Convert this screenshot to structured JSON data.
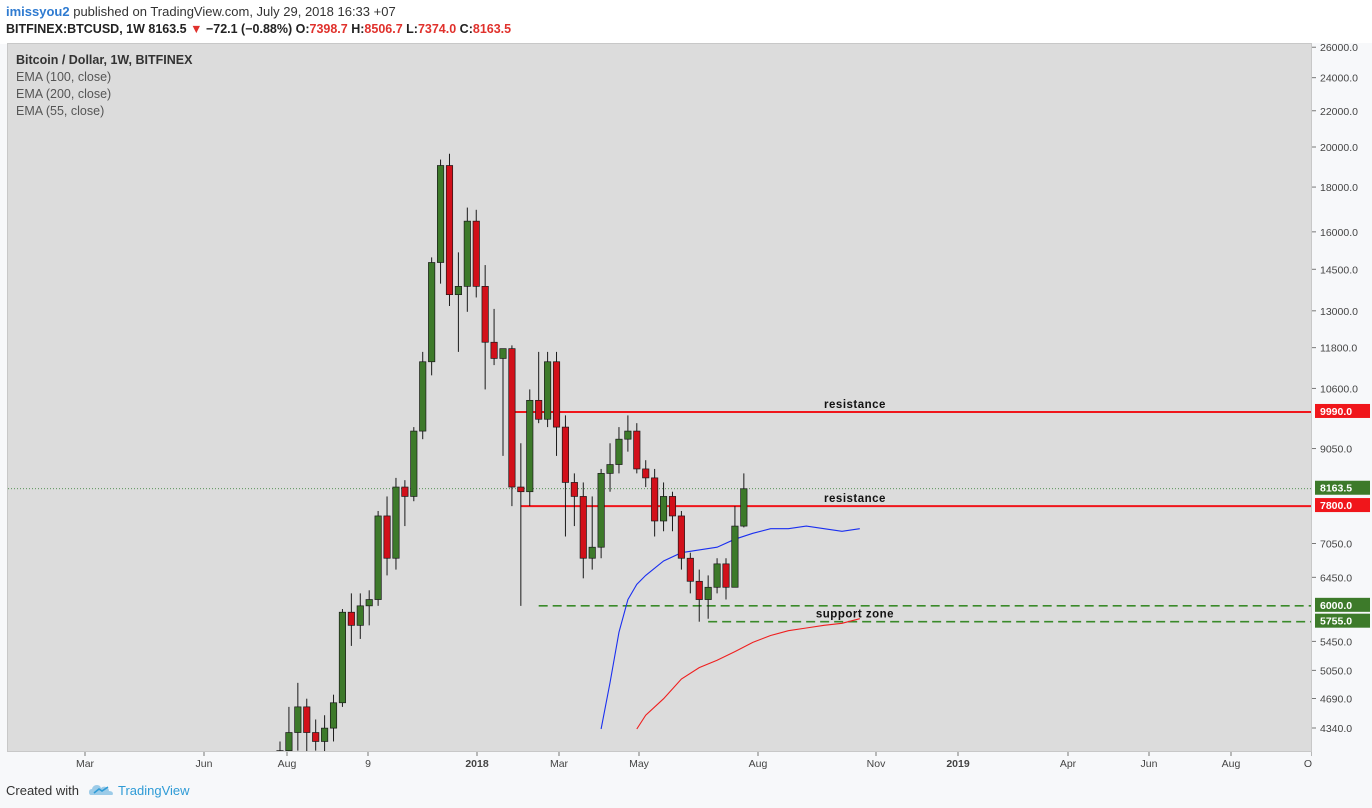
{
  "header": {
    "user": "imissyou2",
    "published": "published on TradingView.com, July 29, 2018 16:33 +07",
    "symbol": "BITFINEX:BTCUSD, 1W",
    "last": "8163.5",
    "change": "−72.1 (−0.88%)",
    "o_label": "O:",
    "o_value": "7398.7",
    "h_label": "H:",
    "h_value": "8506.7",
    "l_label": "L:",
    "l_value": "7374.0",
    "c_label": "C:",
    "c_value": "8163.5"
  },
  "legend": {
    "title": "Bitcoin / Dollar, 1W, BITFINEX",
    "ema1": "EMA (100, close)",
    "ema2": "EMA (200, close)",
    "ema3": "EMA (55, close)"
  },
  "footer": {
    "created": "Created with",
    "brand": "TradingView"
  },
  "colors": {
    "up": "#3d7a2a",
    "down": "#d2101a",
    "ema_blue": "#1a2ff0",
    "ema_red": "#ef1f1f",
    "resistance": "#f0161b",
    "support": "#3a8a2a"
  },
  "chart_data": {
    "type": "candlestick",
    "y_axis_ticks": [
      4340,
      4690,
      5050,
      5450,
      6450,
      7050,
      9050,
      10600,
      11800,
      13000,
      14500,
      16000,
      18000,
      20000,
      22000,
      24000,
      26000
    ],
    "y_axis_tick_labels": [
      "4340.0",
      "4690.0",
      "5050.0",
      "5450.0",
      "6450.0",
      "7050.0",
      "9050.0",
      "10600.0",
      "11800.0",
      "13000.0",
      "14500.0",
      "16000.0",
      "18000.0",
      "20000.0",
      "22000.0",
      "24000.0",
      "26000.0"
    ],
    "x_axis_labels": [
      "Mar",
      "Jun",
      "Aug",
      "9",
      "2018",
      "Mar",
      "May",
      "Aug",
      "Nov",
      "2019",
      "Apr",
      "Jun",
      "Aug",
      "Oct"
    ],
    "price_labels": [
      {
        "label": "9990.0",
        "value": 9990,
        "color": "#f0161b"
      },
      {
        "label": "8163.5",
        "value": 8163.5,
        "color": "#3d7a2a"
      },
      {
        "label": "7800.0",
        "value": 7800,
        "color": "#f0161b"
      },
      {
        "label": "6000.0",
        "value": 6000,
        "color": "#3d7a2a"
      },
      {
        "label": "5755.0",
        "value": 5755,
        "color": "#3d7a2a"
      }
    ],
    "annotations": [
      {
        "text": "resistance",
        "price": 9990
      },
      {
        "text": "resistance",
        "price": 7800
      },
      {
        "text": "support zone",
        "price": 5755
      }
    ],
    "levels": [
      {
        "price": 9990,
        "style": "solid",
        "color": "#f0161b",
        "x_from_week": 26
      },
      {
        "price": 7800,
        "style": "solid",
        "color": "#f0161b",
        "x_from_week": 27
      },
      {
        "price": 6000,
        "style": "dashed",
        "color": "#3a8a2a",
        "x_from_week": 29
      },
      {
        "price": 5755,
        "style": "dashed",
        "color": "#3a8a2a",
        "x_from_week": 48
      }
    ],
    "current_price": 8163.5,
    "candles": [
      [
        4000,
        4200,
        3900,
        4100
      ],
      [
        4100,
        4600,
        3800,
        4300
      ],
      [
        4300,
        4900,
        4100,
        4600
      ],
      [
        4600,
        4700,
        4000,
        4300
      ],
      [
        4300,
        4450,
        4100,
        4200
      ],
      [
        4200,
        4500,
        4000,
        4350
      ],
      [
        4350,
        4750,
        4200,
        4650
      ],
      [
        4650,
        5950,
        4600,
        5900
      ],
      [
        5900,
        6200,
        5400,
        5700
      ],
      [
        5700,
        6200,
        5500,
        6000
      ],
      [
        6000,
        6250,
        5700,
        6100
      ],
      [
        6100,
        7700,
        6000,
        7600
      ],
      [
        7600,
        8000,
        6500,
        6800
      ],
      [
        6800,
        8400,
        6600,
        8200
      ],
      [
        8200,
        8350,
        7400,
        8000
      ],
      [
        8000,
        9600,
        7900,
        9500
      ],
      [
        9500,
        11700,
        9300,
        11400
      ],
      [
        11400,
        15000,
        11000,
        14800
      ],
      [
        14800,
        19400,
        14000,
        19100
      ],
      [
        19100,
        19700,
        13200,
        13600
      ],
      [
        13600,
        15200,
        11700,
        13900
      ],
      [
        13900,
        17100,
        13000,
        16500
      ],
      [
        16500,
        17000,
        13500,
        13900
      ],
      [
        13900,
        14700,
        10600,
        12000
      ],
      [
        12000,
        13100,
        11300,
        11500
      ],
      [
        11500,
        11800,
        8900,
        11800
      ],
      [
        11800,
        11900,
        7800,
        8200
      ],
      [
        8200,
        9200,
        6000,
        8100
      ],
      [
        8100,
        10600,
        7800,
        10300
      ],
      [
        10300,
        11700,
        9700,
        9800
      ],
      [
        9800,
        11700,
        9600,
        11400
      ],
      [
        11400,
        11700,
        8900,
        9600
      ],
      [
        9600,
        9900,
        7200,
        8300
      ],
      [
        8300,
        8500,
        7400,
        8000
      ],
      [
        8000,
        8300,
        6450,
        6800
      ],
      [
        6800,
        8000,
        6600,
        7000
      ],
      [
        7000,
        8600,
        6800,
        8500
      ],
      [
        8500,
        9200,
        8100,
        8700
      ],
      [
        8700,
        9600,
        8500,
        9300
      ],
      [
        9300,
        9900,
        9000,
        9500
      ],
      [
        9500,
        9700,
        8500,
        8600
      ],
      [
        8600,
        8800,
        8200,
        8400
      ],
      [
        8400,
        8600,
        7200,
        7500
      ],
      [
        7500,
        8300,
        7300,
        8000
      ],
      [
        8000,
        8100,
        7300,
        7600
      ],
      [
        7600,
        7700,
        6600,
        6800
      ],
      [
        6800,
        6900,
        6200,
        6400
      ],
      [
        6400,
        6600,
        5755,
        6100
      ],
      [
        6100,
        6500,
        5800,
        6300
      ],
      [
        6300,
        6800,
        6200,
        6700
      ],
      [
        6700,
        6800,
        6100,
        6300
      ],
      [
        6300,
        7800,
        6300,
        7400
      ],
      [
        7400,
        8500,
        7374,
        8163.5
      ]
    ],
    "ema_blue": [
      [
        36,
        4340
      ],
      [
        37,
        4900
      ],
      [
        38,
        5600
      ],
      [
        39,
        6100
      ],
      [
        40,
        6350
      ],
      [
        41,
        6500
      ],
      [
        43,
        6750
      ],
      [
        45,
        6900
      ],
      [
        47,
        6950
      ],
      [
        49,
        7000
      ],
      [
        51,
        7150
      ],
      [
        53,
        7260
      ],
      [
        55,
        7350
      ],
      [
        57,
        7350
      ],
      [
        59,
        7400
      ],
      [
        61,
        7350
      ],
      [
        63,
        7300
      ],
      [
        65,
        7350
      ]
    ],
    "ema_red": [
      [
        40,
        4340
      ],
      [
        41,
        4500
      ],
      [
        43,
        4700
      ],
      [
        45,
        4950
      ],
      [
        47,
        5100
      ],
      [
        49,
        5200
      ],
      [
        51,
        5320
      ],
      [
        53,
        5450
      ],
      [
        55,
        5550
      ],
      [
        57,
        5620
      ],
      [
        59,
        5660
      ],
      [
        61,
        5700
      ],
      [
        63,
        5730
      ],
      [
        65,
        5800
      ]
    ]
  }
}
